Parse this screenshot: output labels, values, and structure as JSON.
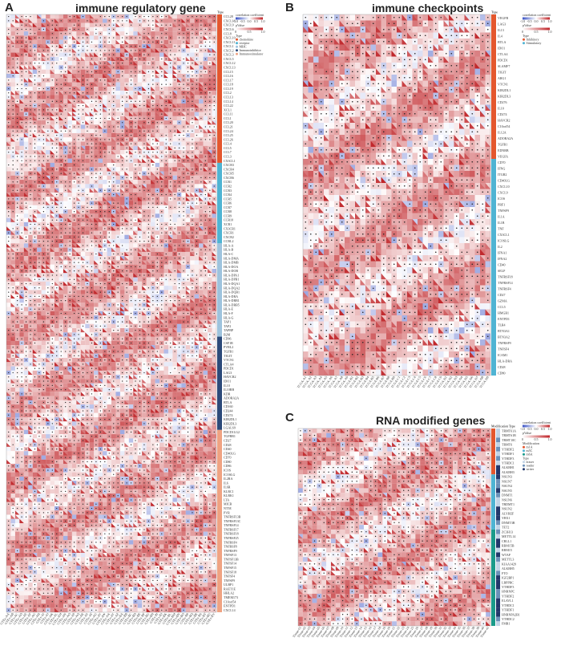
{
  "figure": {
    "panel_labels": [
      "A",
      "B",
      "C"
    ]
  },
  "legend": {
    "corr_title": "correlation coefficient",
    "corr_ticks": [
      "-1.0",
      "-0.5",
      "0.0",
      "0.5",
      "1.0"
    ],
    "p_title": "pValue",
    "p_ticks": [
      "0",
      "0.5",
      "1.0"
    ],
    "type_title": "Type",
    "mod_title": "Modification",
    "colors": {
      "neg": "#3b53c4",
      "zero": "#ffffff",
      "pos": "#c0262a"
    }
  },
  "chart_data": [
    {
      "type": "heatmap",
      "title": "immune regulatory gene",
      "type_label": "Type",
      "genes": [
        "CCL28",
        "CXCL16",
        "CXCL9",
        "CXCL6",
        "CCL8",
        "CXCL10",
        "CXCL11",
        "CXCL1",
        "CXCL2",
        "CXCL3",
        "CXCL5",
        "CXCL12",
        "CXCL13",
        "CCL15",
        "CCL16",
        "CCL17",
        "CCL18",
        "CCL19",
        "CCL2",
        "CCL13",
        "CCL14",
        "CCL22",
        "XCL1",
        "CCL11",
        "CCL1",
        "CCL20",
        "CCL21",
        "CCL24",
        "CCL25",
        "CCL26",
        "CCL4",
        "CCL5",
        "CCL7",
        "CCL3",
        "CX3CL1",
        "CXCR3",
        "CXCR4",
        "CXCR5",
        "CXCR6",
        "CCR1",
        "CCR2",
        "CCR3",
        "CCR4",
        "CCR5",
        "CCR6",
        "CCR7",
        "CCR8",
        "CCR9",
        "CCR10",
        "XCR1",
        "CX3CR1",
        "CXCR1",
        "CXCR2",
        "CCRL2",
        "HLA-A",
        "HLA-B",
        "HLA-C",
        "HLA-DMA",
        "HLA-DMB",
        "HLA-DOA",
        "HLA-DOB",
        "HLA-DPA1",
        "HLA-DPB1",
        "HLA-DQA1",
        "HLA-DQA2",
        "HLA-DQB1",
        "HLA-DRA",
        "HLA-DRB1",
        "HLA-DRB5",
        "HLA-E",
        "HLA-F",
        "HLA-G",
        "TAP1",
        "TAP2",
        "TAPBP",
        "B2M",
        "CD96",
        "CSF1R",
        "PVRL2",
        "TGFB1",
        "TIGIT",
        "VTCN1",
        "CTLA4",
        "PDCD1",
        "LAG3",
        "HAVCR2",
        "IDO1",
        "IL10",
        "IL10RB",
        "KDR",
        "ADORA2A",
        "BTLA",
        "CD160",
        "CD244",
        "CD274",
        "KIR2DL1",
        "KIR2DL3",
        "LGALS9",
        "PDCD1LG2",
        "TGFBR1",
        "CD27",
        "CD28",
        "CD40",
        "CD40LG",
        "CD70",
        "CD80",
        "CD86",
        "ICOS",
        "ICOSLG",
        "IL2RA",
        "IL6",
        "IL6R",
        "KLRC1",
        "KLRK1",
        "LTA",
        "MICB",
        "NT5E",
        "PVR",
        "TNFRSF13B",
        "TNFRSF13C",
        "TNFRSF14",
        "TNFRSF17",
        "TNFRSF18",
        "TNFRSF25",
        "TNFRSF4",
        "TNFRSF8",
        "TNFRSF9",
        "TNFSF13",
        "TNFSF13B",
        "TNFSF14",
        "TNFSF15",
        "TNFSF18",
        "TNFSF4",
        "TNFSF9",
        "ULBP1",
        "RAET1E",
        "HHLA2",
        "TMEM173",
        "C10orf54",
        "ENTPD1",
        "CXCL14"
      ],
      "samples": [
        "GTEx-AA",
        "GTEx-AB",
        "GTEx-AC",
        "GTEx-AD",
        "GTEx-AE",
        "GTEx-AF",
        "GTEx-AG",
        "GTEx-AH",
        "GTEx-AI",
        "GTEx-AJ",
        "GTEx-AK",
        "GTEx-AL",
        "GTEx-AM",
        "GTEx-AN",
        "GTEx-AO",
        "GTEx-AP",
        "GTEx-AQ",
        "GTEx-AR",
        "GTEx-AS",
        "GTEx-AT",
        "GTEx-AU",
        "GTEx-AV",
        "GTEx-AW",
        "GTEx-AX",
        "GTEx-AY",
        "GTEx-AZ",
        "GTEx-BA",
        "GTEx-BB",
        "GTEx-BC",
        "GTEx-BD",
        "GTEx-BE",
        "GTEx-BF",
        "GTEx-BG",
        "GTEx-BH",
        "GTEx-BI",
        "GTEx-BJ",
        "GTEx-BK",
        "GTEx-BL",
        "GTEx-BM",
        "GTEx-BN",
        "GTEx-BO",
        "GTEx-BP",
        "GTEx-BQ",
        "GTEx-BR",
        "GTEx-BS",
        "GTEx-BT",
        "GTEx-BU",
        "GTEx-BV"
      ],
      "groups": [
        {
          "name": "chemokine",
          "count": 35,
          "color": "#e4572e"
        },
        {
          "name": "receptor",
          "count": 19,
          "color": "#4fb4d3"
        },
        {
          "name": "MHC",
          "count": 22,
          "color": "#9ec3dd"
        },
        {
          "name": "Immunoinhibitor",
          "count": 22,
          "color": "#2c4a7a"
        },
        {
          "name": "Immunostimulator",
          "count": 43,
          "color": "#f0a382"
        }
      ],
      "corr_range": [
        -1,
        1
      ],
      "seed": 11
    },
    {
      "type": "heatmap",
      "title": "immune checkpoints",
      "type_label": "Type",
      "genes": [
        "VEGFB",
        "LAG3",
        "IL13",
        "IL4",
        "BTLA",
        "IDO1",
        "CTLA4",
        "PDCD1",
        "SLAMF7",
        "TIGIT",
        "ARG1",
        "VTCN1",
        "KIR2DL1",
        "KIR2DL3",
        "CD276",
        "IL10",
        "CD274",
        "HAVCR2",
        "C10orf54",
        "IL12A",
        "ADORA2A",
        "TGFB1",
        "EDNRB",
        "VEGFA",
        "CD70",
        "IFNG",
        "ITGB2",
        "CD40LG",
        "CXCL10",
        "CXCL9",
        "ICOS",
        "PRF1",
        "TNFSF9",
        "IL1A",
        "IL1B",
        "TNF",
        "CX3CL1",
        "ICOSLG",
        "IL2",
        "IFNA1",
        "IFNA2",
        "CD40",
        "SELP",
        "TNFRSF18",
        "TNFRSF14",
        "TNFRSF4",
        "CD27",
        "GZMA",
        "CCL5",
        "HMGB1",
        "ENTPD1",
        "TLR4",
        "BTN3A1",
        "BTN3A2",
        "TNFRSF9",
        "TNFSF4",
        "ICAM1",
        "HLA-DRA",
        "CD28",
        "CD80"
      ],
      "samples": [
        "TCGA-A1",
        "TCGA-A2",
        "TCGA-A3",
        "TCGA-A4",
        "TCGA-A5",
        "TCGA-A6",
        "TCGA-A7",
        "TCGA-A8",
        "TCGA-A9",
        "TCGA-B1",
        "TCGA-B2",
        "TCGA-B3",
        "TCGA-B4",
        "TCGA-B5",
        "TCGA-B6",
        "TCGA-B7",
        "TCGA-B8",
        "TCGA-B9",
        "TCGA-C1",
        "TCGA-C2",
        "TCGA-C3",
        "TCGA-C4",
        "TCGA-C5",
        "TCGA-C6",
        "TCGA-C7",
        "TCGA-C8",
        "TCGA-C9",
        "TCGA-D1",
        "TCGA-D2",
        "TCGA-D3",
        "TCGA-D4",
        "TCGA-D5",
        "TCGA-D6",
        "TCGA-D7",
        "TCGA-D8",
        "TCGA-D9"
      ],
      "groups": [
        {
          "name": "Inhibitory",
          "count": 24,
          "color": "#e4572e"
        },
        {
          "name": "Stimulatory",
          "count": 36,
          "color": "#4fb4d3"
        }
      ],
      "corr_range": [
        -1,
        1
      ],
      "seed": 23
    },
    {
      "type": "heatmap",
      "title": "RNA modified genes",
      "type_label": "Modification Type",
      "genes": [
        "TRMT61A",
        "TRMT61B",
        "TRMT10C",
        "TRMT6",
        "YTHDF2",
        "YTHDF1",
        "YTHDF3",
        "YTHDC1",
        "ALKBH1",
        "ALKBH3",
        "NSUN3",
        "NSUN7",
        "NSUN4",
        "NSUN5",
        "DNMT1",
        "NSUN6",
        "TRDMT1",
        "NSUN2",
        "ALYREF",
        "YBX1",
        "DNMT3B",
        "TET2",
        "ZC3H13",
        "METTL14",
        "CBLL1",
        "RBM15B",
        "RBM15",
        "WTAP",
        "METTL3",
        "KIAA1429",
        "ALKBH5",
        "FTO",
        "IGF2BP1",
        "LRPPRC",
        "YTHDF3",
        "HNRNPC",
        "YTHDF2",
        "ELAVL1",
        "YTHDC1",
        "YTHDF1",
        "HNRNPA2B1",
        "YTHDC2",
        "FMR1"
      ],
      "samples": [
        "Tissue-01",
        "Tissue-02",
        "Tissue-03",
        "Tissue-04",
        "Tissue-05",
        "Tissue-06",
        "Tissue-07",
        "Tissue-08",
        "Tissue-09",
        "Tissue-10",
        "Tissue-11",
        "Tissue-12",
        "Tissue-13",
        "Tissue-14",
        "Tissue-15",
        "Tissue-16",
        "Tissue-17",
        "Tissue-18",
        "Tissue-19",
        "Tissue-20",
        "Tissue-21",
        "Tissue-22",
        "Tissue-23",
        "Tissue-24",
        "Tissue-25",
        "Tissue-26",
        "Tissue-27",
        "Tissue-28",
        "Tissue-29",
        "Tissue-30",
        "Tissue-31",
        "Tissue-32",
        "Tissue-33",
        "Tissue-34",
        "Tissue-35",
        "Tissue-36",
        "Tissue-37",
        "Tissue-38",
        "Tissue-39",
        "Tissue-40",
        "Tissue-41"
      ],
      "groups": [
        {
          "name": "m1A",
          "count": 10,
          "color": "#e4572e"
        },
        {
          "name": "m5C",
          "count": 12,
          "color": "#4fb4d3"
        },
        {
          "name": "m6A",
          "count": 21,
          "color": "#1a9b8a"
        }
      ],
      "subgroups": [
        {
          "name": "eraser",
          "color": "#c2d4e6"
        },
        {
          "name": "reader",
          "color": "#6b90b8"
        },
        {
          "name": "writer",
          "color": "#23376b"
        }
      ],
      "corr_range": [
        -1,
        1
      ],
      "seed": 37
    }
  ]
}
